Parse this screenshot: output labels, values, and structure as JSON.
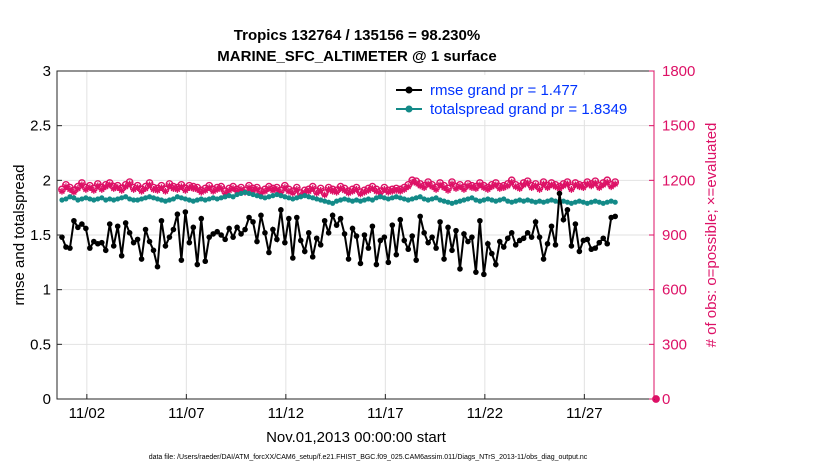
{
  "colors": {
    "rmse": "#000000",
    "spread": "#138a88",
    "obs": "#dd1166",
    "legend_text": "#0033ff",
    "grid": "#e2e2e2"
  },
  "chart_data": {
    "type": "line",
    "title_line1": "Tropics 132764 / 135156 = 98.230%",
    "title_line2": "MARINE_SFC_ALTIMETER @ 1 surface",
    "xlabel": "Nov.01,2013 00:00:00 start",
    "ylabel_left": "rmse and totalspread",
    "ylabel_right": "# of obs: o=possible; ×=evaluated",
    "footer": "data file: /Users/raeder/DAI/ATM_forcXX/CAM6_setup/f.e21.FHIST_BGC.f09_025.CAM6assim.011/Diags_NTrS_2013-11/obs_diag_output.nc",
    "xlim": [
      0.5,
      30.5
    ],
    "ylim_left": [
      0,
      3
    ],
    "ylim_right": [
      0,
      1800
    ],
    "x_tick_labels": [
      "11/02",
      "11/07",
      "11/12",
      "11/17",
      "11/22",
      "11/27"
    ],
    "left_tick_labels": [
      "0",
      "0.5",
      "1",
      "1.5",
      "2",
      "2.5",
      "3"
    ],
    "right_tick_labels": [
      "0",
      "300",
      "600",
      "900",
      "1200",
      "1500",
      "1800"
    ],
    "legend": [
      {
        "key": "rmse",
        "label": "rmse grand pr = 1.477"
      },
      {
        "key": "spread",
        "label": "totalspread grand pr = 1.8349"
      }
    ],
    "series": [
      {
        "name": "rmse",
        "axis": "left",
        "values": [
          1.48,
          1.39,
          1.38,
          1.63,
          1.57,
          1.6,
          1.56,
          1.38,
          1.44,
          1.42,
          1.43,
          1.36,
          1.6,
          1.4,
          1.58,
          1.31,
          1.61,
          1.52,
          1.43,
          1.46,
          1.28,
          1.55,
          1.44,
          1.36,
          1.21,
          1.63,
          1.4,
          1.48,
          1.55,
          1.69,
          1.27,
          1.71,
          1.43,
          1.57,
          1.23,
          1.65,
          1.26,
          1.48,
          1.51,
          1.53,
          1.5,
          1.46,
          1.56,
          1.48,
          1.57,
          1.51,
          1.55,
          1.66,
          1.62,
          1.44,
          1.68,
          1.52,
          1.34,
          1.55,
          1.46,
          1.73,
          1.43,
          1.65,
          1.29,
          1.66,
          1.45,
          1.35,
          1.52,
          1.3,
          1.47,
          1.41,
          1.63,
          1.52,
          1.68,
          1.59,
          1.65,
          1.51,
          1.28,
          1.56,
          1.49,
          1.24,
          1.5,
          1.38,
          1.58,
          1.23,
          1.45,
          1.48,
          1.25,
          1.59,
          1.32,
          1.64,
          1.45,
          1.37,
          1.49,
          1.27,
          1.67,
          1.52,
          1.43,
          1.48,
          1.38,
          1.62,
          1.28,
          1.57,
          1.36,
          1.54,
          1.19,
          1.51,
          1.44,
          1.48,
          1.16,
          1.63,
          1.14,
          1.42,
          1.33,
          1.23,
          1.44,
          1.39,
          1.47,
          1.52,
          1.41,
          1.45,
          1.47,
          1.52,
          1.48,
          1.62,
          1.48,
          1.28,
          1.42,
          1.58,
          1.41,
          1.88,
          1.64,
          1.73,
          1.4,
          1.6,
          1.35,
          1.45,
          1.46,
          1.37,
          1.38,
          1.43,
          1.47,
          1.42,
          1.66,
          1.67
        ]
      },
      {
        "name": "totalspread",
        "axis": "left",
        "values": [
          1.82,
          1.83,
          1.85,
          1.84,
          1.82,
          1.83,
          1.84,
          1.83,
          1.82,
          1.83,
          1.84,
          1.82,
          1.83,
          1.82,
          1.83,
          1.84,
          1.85,
          1.83,
          1.82,
          1.82,
          1.83,
          1.84,
          1.85,
          1.84,
          1.83,
          1.82,
          1.81,
          1.82,
          1.83,
          1.85,
          1.84,
          1.83,
          1.82,
          1.81,
          1.82,
          1.83,
          1.82,
          1.83,
          1.84,
          1.83,
          1.84,
          1.85,
          1.86,
          1.85,
          1.87,
          1.88,
          1.89,
          1.88,
          1.87,
          1.86,
          1.85,
          1.84,
          1.85,
          1.86,
          1.87,
          1.86,
          1.85,
          1.84,
          1.83,
          1.84,
          1.85,
          1.86,
          1.85,
          1.84,
          1.83,
          1.82,
          1.81,
          1.8,
          1.79,
          1.81,
          1.82,
          1.83,
          1.82,
          1.81,
          1.82,
          1.81,
          1.82,
          1.83,
          1.82,
          1.84,
          1.85,
          1.84,
          1.83,
          1.84,
          1.85,
          1.84,
          1.83,
          1.82,
          1.83,
          1.84,
          1.85,
          1.83,
          1.82,
          1.83,
          1.84,
          1.82,
          1.81,
          1.8,
          1.79,
          1.8,
          1.81,
          1.82,
          1.83,
          1.84,
          1.82,
          1.81,
          1.82,
          1.83,
          1.82,
          1.81,
          1.82,
          1.83,
          1.81,
          1.8,
          1.81,
          1.82,
          1.81,
          1.82,
          1.81,
          1.8,
          1.81,
          1.8,
          1.81,
          1.82,
          1.81,
          1.8,
          1.81,
          1.8,
          1.79,
          1.8,
          1.81,
          1.8,
          1.79,
          1.8,
          1.81,
          1.8,
          1.79,
          1.8,
          1.81,
          1.8
        ]
      },
      {
        "name": "obs_possible",
        "axis": "right",
        "values": [
          1150,
          1175,
          1160,
          1145,
          1165,
          1185,
          1160,
          1170,
          1155,
          1180,
          1160,
          1175,
          1185,
          1165,
          1170,
          1155,
          1175,
          1190,
          1160,
          1170,
          1150,
          1165,
          1185,
          1160,
          1155,
          1170,
          1150,
          1180,
          1165,
          1160,
          1175,
          1155,
          1170,
          1165,
          1160,
          1145,
          1155,
          1170,
          1150,
          1160,
          1165,
          1140,
          1155,
          1165,
          1150,
          1160,
          1145,
          1170,
          1155,
          1160,
          1140,
          1150,
          1165,
          1155,
          1160,
          1145,
          1170,
          1150,
          1140,
          1160,
          1130,
          1145,
          1150,
          1165,
          1140,
          1155,
          1130,
          1160,
          1150,
          1145,
          1165,
          1155,
          1140,
          1150,
          1160,
          1135,
          1145,
          1155,
          1165,
          1150,
          1140,
          1160,
          1145,
          1150,
          1155,
          1150,
          1160,
          1175,
          1200,
          1195,
          1180,
          1170,
          1190,
          1175,
          1160,
          1185,
          1170,
          1155,
          1190,
          1165,
          1175,
          1160,
          1180,
          1170,
          1165,
          1185,
          1170,
          1160,
          1175,
          1185,
          1165,
          1170,
          1180,
          1200,
          1175,
          1165,
          1185,
          1195,
          1170,
          1180,
          1160,
          1190,
          1170,
          1185,
          1175,
          1165,
          1180,
          1190,
          1160,
          1185,
          1175,
          1170,
          1190,
          1180,
          1195,
          1170,
          1185,
          1200,
          1175,
          1190
        ]
      },
      {
        "name": "obs_evaluated",
        "axis": "right",
        "values": [
          1140,
          1165,
          1150,
          1135,
          1155,
          1175,
          1150,
          1160,
          1145,
          1170,
          1150,
          1165,
          1175,
          1155,
          1160,
          1145,
          1165,
          1180,
          1150,
          1160,
          1140,
          1155,
          1175,
          1150,
          1145,
          1160,
          1140,
          1170,
          1155,
          1150,
          1165,
          1145,
          1160,
          1155,
          1150,
          1135,
          1145,
          1160,
          1140,
          1150,
          1155,
          1130,
          1145,
          1155,
          1140,
          1150,
          1135,
          1160,
          1145,
          1150,
          1130,
          1140,
          1155,
          1145,
          1150,
          1135,
          1160,
          1140,
          1130,
          1150,
          1120,
          1135,
          1140,
          1155,
          1130,
          1145,
          1120,
          1150,
          1140,
          1135,
          1155,
          1145,
          1130,
          1140,
          1150,
          1125,
          1135,
          1145,
          1155,
          1140,
          1130,
          1150,
          1135,
          1140,
          1145,
          1140,
          1150,
          1165,
          1190,
          1185,
          1170,
          1160,
          1180,
          1165,
          1150,
          1175,
          1160,
          1145,
          1180,
          1155,
          1165,
          1150,
          1170,
          1160,
          1155,
          1175,
          1160,
          1150,
          1165,
          1175,
          1155,
          1160,
          1170,
          1190,
          1165,
          1155,
          1175,
          1185,
          1160,
          1170,
          1150,
          1180,
          1160,
          1175,
          1165,
          1155,
          1170,
          1180,
          1150,
          1175,
          1165,
          1160,
          1180,
          1170,
          1185,
          1160,
          1175,
          1190,
          1165,
          1180
        ]
      }
    ]
  }
}
